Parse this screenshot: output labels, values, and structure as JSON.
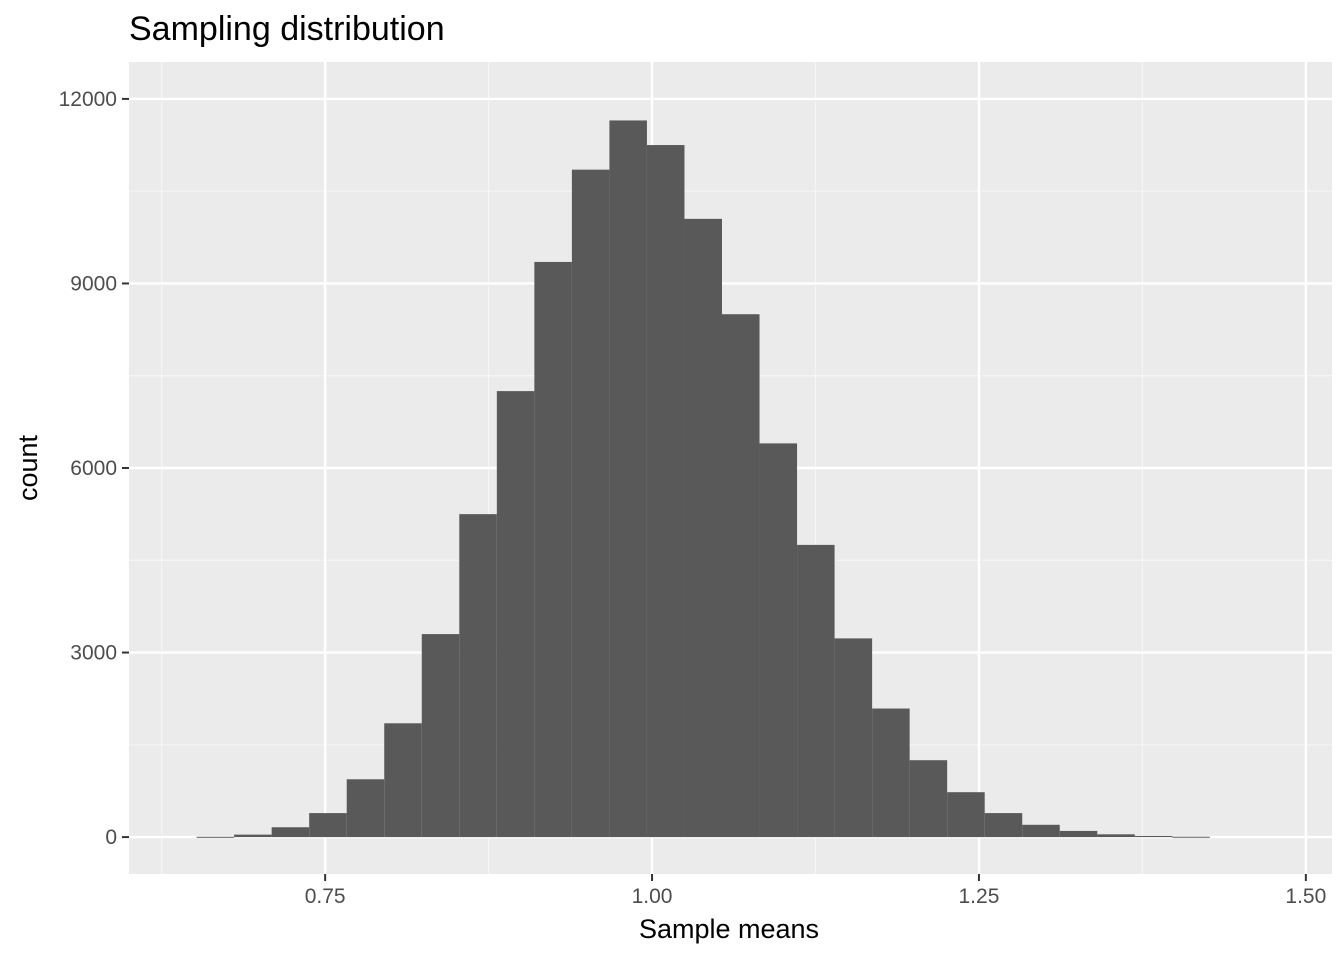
{
  "chart_data": {
    "type": "bar",
    "subtype": "histogram",
    "title": "Sampling distribution",
    "xlabel": "Sample means",
    "ylabel": "count",
    "xlim": [
      0.6,
      1.52
    ],
    "ylim": [
      -600,
      12600
    ],
    "x_ticks": [
      0.75,
      1.0,
      1.25,
      1.5
    ],
    "x_tick_labels": [
      "0.75",
      "1.00",
      "1.25",
      "1.50"
    ],
    "y_ticks": [
      0,
      3000,
      6000,
      9000,
      12000
    ],
    "y_tick_labels": [
      "0",
      "3000",
      "6000",
      "9000",
      "12000"
    ],
    "bin_width": 0.0287,
    "bins": [
      {
        "x0": 0.6517,
        "x1": 0.6804,
        "count": 5
      },
      {
        "x0": 0.6804,
        "x1": 0.7091,
        "count": 40
      },
      {
        "x0": 0.7091,
        "x1": 0.7378,
        "count": 160
      },
      {
        "x0": 0.7378,
        "x1": 0.7665,
        "count": 390
      },
      {
        "x0": 0.7665,
        "x1": 0.7952,
        "count": 940
      },
      {
        "x0": 0.7952,
        "x1": 0.8239,
        "count": 1850
      },
      {
        "x0": 0.8239,
        "x1": 0.8526,
        "count": 3300
      },
      {
        "x0": 0.8526,
        "x1": 0.8813,
        "count": 5250
      },
      {
        "x0": 0.8813,
        "x1": 0.91,
        "count": 7250
      },
      {
        "x0": 0.91,
        "x1": 0.9387,
        "count": 9350
      },
      {
        "x0": 0.9387,
        "x1": 0.9674,
        "count": 10850
      },
      {
        "x0": 0.9674,
        "x1": 0.9961,
        "count": 11650
      },
      {
        "x0": 0.9961,
        "x1": 1.0248,
        "count": 11250
      },
      {
        "x0": 1.0248,
        "x1": 1.0535,
        "count": 10050
      },
      {
        "x0": 1.0535,
        "x1": 1.0822,
        "count": 8500
      },
      {
        "x0": 1.0822,
        "x1": 1.1109,
        "count": 6400
      },
      {
        "x0": 1.1109,
        "x1": 1.1396,
        "count": 4750
      },
      {
        "x0": 1.1396,
        "x1": 1.1683,
        "count": 3230
      },
      {
        "x0": 1.1683,
        "x1": 1.197,
        "count": 2090
      },
      {
        "x0": 1.197,
        "x1": 1.2257,
        "count": 1250
      },
      {
        "x0": 1.2257,
        "x1": 1.2544,
        "count": 730
      },
      {
        "x0": 1.2544,
        "x1": 1.2831,
        "count": 390
      },
      {
        "x0": 1.2831,
        "x1": 1.3118,
        "count": 200
      },
      {
        "x0": 1.3118,
        "x1": 1.3405,
        "count": 100
      },
      {
        "x0": 1.3405,
        "x1": 1.3692,
        "count": 45
      },
      {
        "x0": 1.3692,
        "x1": 1.3979,
        "count": 18
      },
      {
        "x0": 1.3979,
        "x1": 1.4266,
        "count": 6
      }
    ],
    "grid": true,
    "legend": "none",
    "colors": {
      "bar_fill": "#595959",
      "panel_background": "#ebebeb",
      "grid_major": "#ffffff",
      "grid_minor": "#f5f5f5",
      "tick_label": "#4d4d4d",
      "tick_mark": "#333333"
    }
  }
}
